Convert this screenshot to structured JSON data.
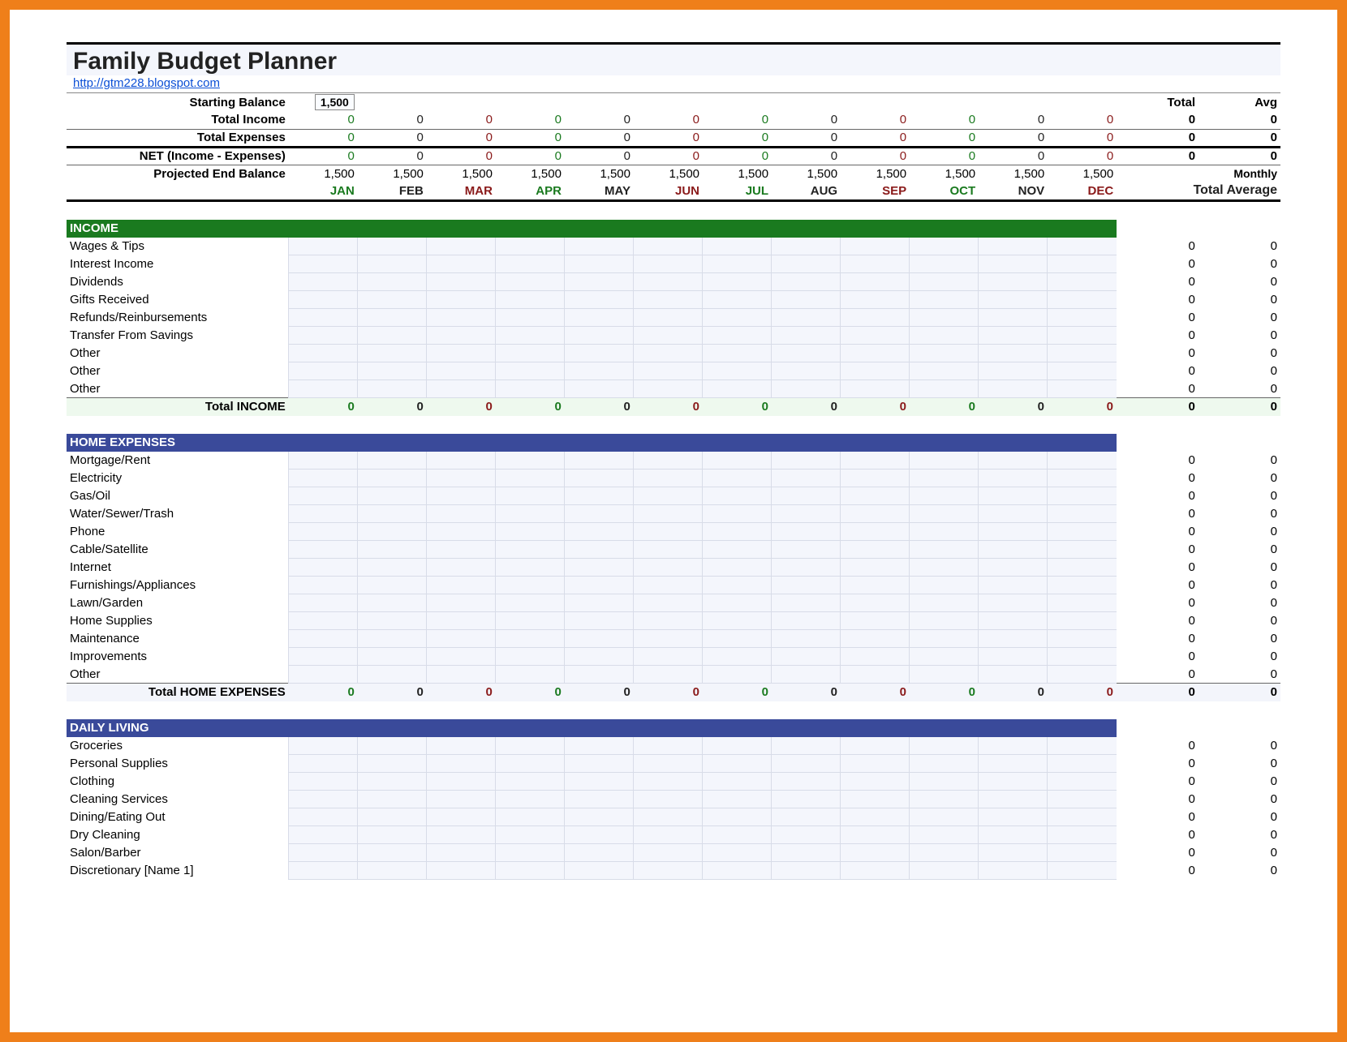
{
  "title": "Family Budget Planner",
  "link": "http://gtm228.blogspot.com",
  "labels": {
    "starting_balance": "Starting Balance",
    "total_income": "Total Income",
    "total_expenses": "Total Expenses",
    "net": "NET (Income - Expenses)",
    "projected_end": "Projected End Balance",
    "total": "Total",
    "avg": "Avg",
    "monthly": "Monthly",
    "total_avg": "Total Average"
  },
  "starting_balance_value": "1,500",
  "months": [
    "JAN",
    "FEB",
    "MAR",
    "APR",
    "MAY",
    "JUN",
    "JUL",
    "AUG",
    "SEP",
    "OCT",
    "NOV",
    "DEC"
  ],
  "month_colors": [
    "#1a7a1f",
    "#222",
    "#8a1a1a",
    "#1a7a1f",
    "#222",
    "#8a1a1a",
    "#1a7a1f",
    "#222",
    "#8a1a1a",
    "#1a7a1f",
    "#222",
    "#8a1a1a"
  ],
  "month_total_header_color": "#222",
  "summary_rows": {
    "total_income": {
      "vals": [
        "0",
        "0",
        "0",
        "0",
        "0",
        "0",
        "0",
        "0",
        "0",
        "0",
        "0",
        "0"
      ],
      "total": "0",
      "avg": "0"
    },
    "total_expenses": {
      "vals": [
        "0",
        "0",
        "0",
        "0",
        "0",
        "0",
        "0",
        "0",
        "0",
        "0",
        "0",
        "0"
      ],
      "total": "0",
      "avg": "0"
    },
    "net": {
      "vals": [
        "0",
        "0",
        "0",
        "0",
        "0",
        "0",
        "0",
        "0",
        "0",
        "0",
        "0",
        "0"
      ],
      "total": "0",
      "avg": "0"
    },
    "projected_end": {
      "vals": [
        "1,500",
        "1,500",
        "1,500",
        "1,500",
        "1,500",
        "1,500",
        "1,500",
        "1,500",
        "1,500",
        "1,500",
        "1,500",
        "1,500"
      ],
      "total": "",
      "avg": ""
    }
  },
  "sections": [
    {
      "title": "INCOME",
      "header_class": "section-green",
      "total_label": "Total INCOME",
      "total_row_class": "total-row-green",
      "items": [
        "Wages & Tips",
        "Interest Income",
        "Dividends",
        "Gifts Received",
        "Refunds/Reinbursements",
        "Transfer From Savings",
        "Other",
        "Other",
        "Other"
      ]
    },
    {
      "title": "HOME EXPENSES",
      "header_class": "section-blue",
      "total_label": "Total HOME EXPENSES",
      "total_row_class": "total-row-blue",
      "items": [
        "Mortgage/Rent",
        "Electricity",
        "Gas/Oil",
        "Water/Sewer/Trash",
        "Phone",
        "Cable/Satellite",
        "Internet",
        "Furnishings/Appliances",
        "Lawn/Garden",
        "Home Supplies",
        "Maintenance",
        "Improvements",
        "Other"
      ]
    },
    {
      "title": "DAILY LIVING",
      "header_class": "section-blue",
      "total_label": "",
      "total_row_class": "",
      "items": [
        "Groceries",
        "Personal Supplies",
        "Clothing",
        "Cleaning Services",
        "Dining/Eating Out",
        "Dry Cleaning",
        "Salon/Barber",
        "Discretionary [Name 1]"
      ]
    }
  ],
  "zero": "0"
}
